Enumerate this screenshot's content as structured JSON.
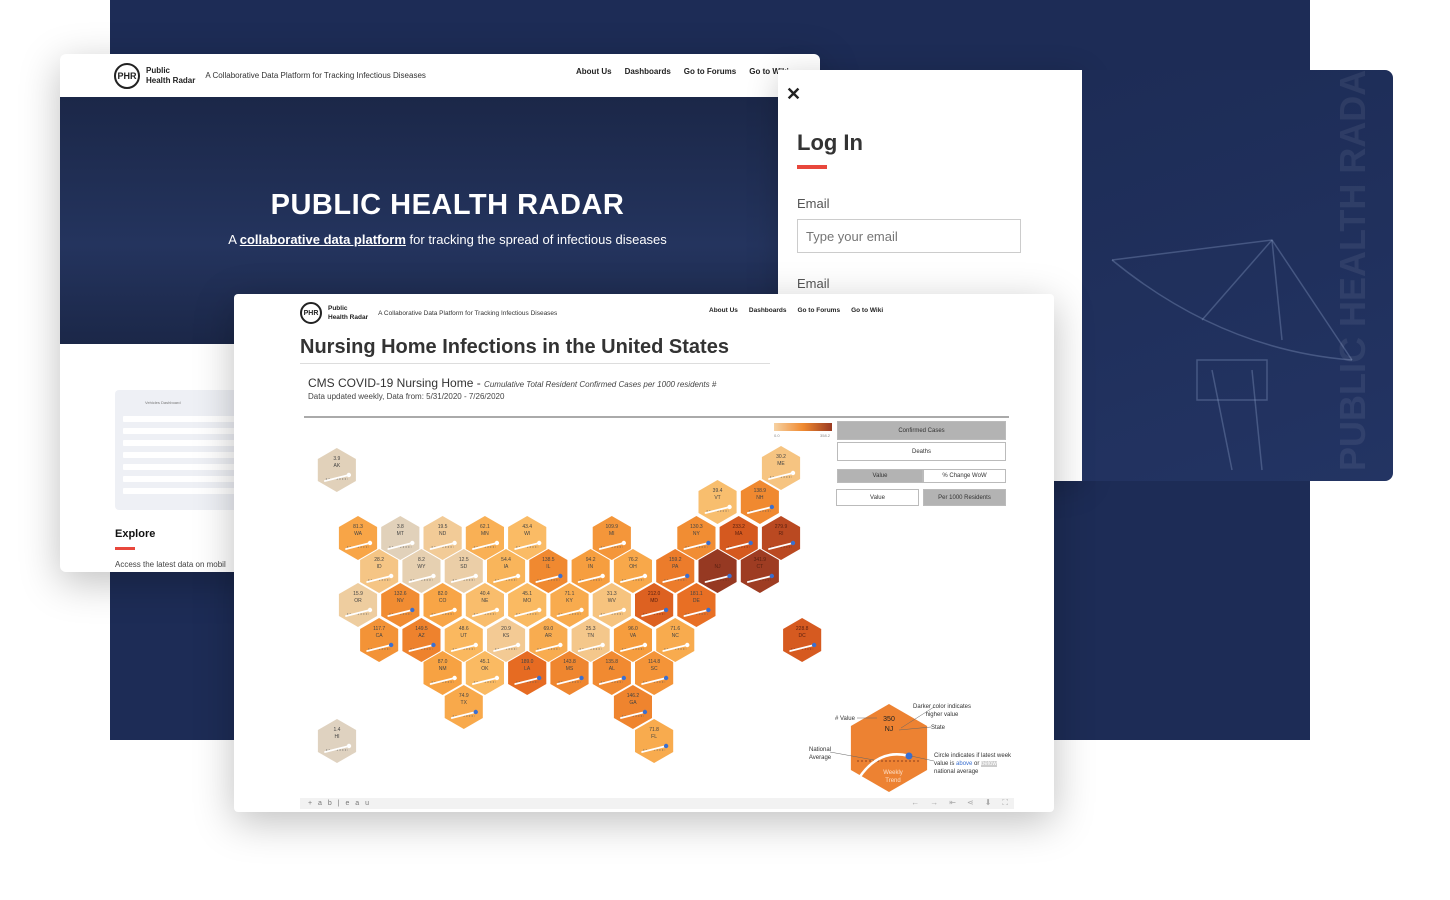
{
  "site": {
    "logo": "PHR",
    "brand_line1": "Public",
    "brand_line2": "Health Radar",
    "tagline": "A Collaborative Data Platform for Tracking Infectious Diseases",
    "nav": [
      "About Us",
      "Dashboards",
      "Go to Forums",
      "Go to Wiki"
    ],
    "hero_title": "PUBLIC HEALTH RADAR",
    "hero_sub_prefix": "A ",
    "hero_sub_link": "collaborative data platform",
    "hero_sub_suffix": " for tracking the spread of infectious diseases",
    "thumb_title": "Vehicles Dashboard",
    "explore_title": "Explore",
    "explore_text": "Access the latest data on mobil"
  },
  "login": {
    "close_icon": "close-icon",
    "title": "Log In",
    "email_label": "Email",
    "email_placeholder": "Type your email",
    "email_label_2": "Email"
  },
  "radar_panel": {
    "watermark": "PUBLIC HEALTH RADAR"
  },
  "dashboard": {
    "title": "Nursing Home Infections in the United States",
    "subtitle": "CMS COVID-19 Nursing Home - ",
    "subtitle_italic": "Cumulative Total Resident Confirmed Cases per 1000 residents #",
    "date_line": "Data updated weekly, Data from: 5/31/2020 - 7/26/2020",
    "gradient_min": "0.0",
    "gradient_max": "358.2",
    "toggles": {
      "confirmed": "Confirmed Cases",
      "deaths": "Deaths",
      "value": "Value",
      "pct_change": "% Change WoW",
      "value2": "Value",
      "per1000": "Per 1000 Residents"
    },
    "legend": {
      "value_label": "# Value",
      "example_value": "350",
      "example_state": "NJ",
      "darker": "Darker color indicates higher value",
      "state": "State",
      "national_avg": "National Average",
      "weekly": "Weekly",
      "trend": "Trend",
      "circle_pre": "Circle indicates if latest week value is ",
      "above": "above",
      "or": " or ",
      "below": "below",
      "circle_post": " national average",
      "above_color": "#3a6fd0"
    },
    "footer": {
      "brand": "+ a b | e a u",
      "icons": [
        "undo-icon",
        "redo-icon",
        "revert-icon",
        "share-icon",
        "download-icon",
        "fullscreen-icon"
      ]
    },
    "states": [
      {
        "s": "AK",
        "v": "3.9",
        "above": false
      },
      {
        "s": "ME",
        "v": "30.2",
        "above": false
      },
      {
        "s": "VT",
        "v": "39.4",
        "above": false
      },
      {
        "s": "NH",
        "v": "138.9",
        "above": true
      },
      {
        "s": "WA",
        "v": "81.3",
        "above": false
      },
      {
        "s": "MT",
        "v": "3.8",
        "above": false
      },
      {
        "s": "ND",
        "v": "19.5",
        "above": false
      },
      {
        "s": "MN",
        "v": "62.1",
        "above": false
      },
      {
        "s": "WI",
        "v": "43.4",
        "above": false
      },
      {
        "s": "MI",
        "v": "109.9",
        "above": false
      },
      {
        "s": "NY",
        "v": "130.3",
        "above": true
      },
      {
        "s": "MA",
        "v": "233.2",
        "above": true
      },
      {
        "s": "RI",
        "v": "279.9",
        "above": true
      },
      {
        "s": "ID",
        "v": "28.2",
        "above": false
      },
      {
        "s": "WY",
        "v": "8.2",
        "above": false
      },
      {
        "s": "SD",
        "v": "12.5",
        "above": false
      },
      {
        "s": "IA",
        "v": "54.4",
        "above": false
      },
      {
        "s": "IL",
        "v": "138.5",
        "above": true
      },
      {
        "s": "IN",
        "v": "94.2",
        "above": false
      },
      {
        "s": "OH",
        "v": "76.2",
        "above": false
      },
      {
        "s": "PA",
        "v": "159.2",
        "above": true
      },
      {
        "s": "NJ",
        "v": "",
        "above": true
      },
      {
        "s": "CT",
        "v": "341.9",
        "above": true
      },
      {
        "s": "OR",
        "v": "15.9",
        "above": false
      },
      {
        "s": "NV",
        "v": "132.6",
        "above": true
      },
      {
        "s": "CO",
        "v": "82.0",
        "above": false
      },
      {
        "s": "NE",
        "v": "40.4",
        "above": false
      },
      {
        "s": "MO",
        "v": "45.1",
        "above": false
      },
      {
        "s": "KY",
        "v": "71.1",
        "above": false
      },
      {
        "s": "WV",
        "v": "31.3",
        "above": false
      },
      {
        "s": "MD",
        "v": "212.0",
        "above": true
      },
      {
        "s": "DE",
        "v": "181.1",
        "above": true
      },
      {
        "s": "CA",
        "v": "117.7",
        "above": true
      },
      {
        "s": "AZ",
        "v": "149.5",
        "above": true
      },
      {
        "s": "UT",
        "v": "48.6",
        "above": false
      },
      {
        "s": "KS",
        "v": "20.9",
        "above": false
      },
      {
        "s": "AR",
        "v": "69.0",
        "above": false
      },
      {
        "s": "TN",
        "v": "25.3",
        "above": false
      },
      {
        "s": "VA",
        "v": "96.0",
        "above": false
      },
      {
        "s": "NC",
        "v": "71.6",
        "above": false
      },
      {
        "s": "DC",
        "v": "228.8",
        "above": true
      },
      {
        "s": "NM",
        "v": "87.0",
        "above": false
      },
      {
        "s": "OK",
        "v": "45.1",
        "above": false
      },
      {
        "s": "LA",
        "v": "189.0",
        "above": true
      },
      {
        "s": "MS",
        "v": "143.8",
        "above": true
      },
      {
        "s": "AL",
        "v": "135.8",
        "above": true
      },
      {
        "s": "SC",
        "v": "114.8",
        "above": true
      },
      {
        "s": "TX",
        "v": "74.9",
        "above": true
      },
      {
        "s": "GA",
        "v": "146.2",
        "above": true
      },
      {
        "s": "HI",
        "v": "1.4",
        "above": false
      },
      {
        "s": "FL",
        "v": "71.8",
        "above": true
      }
    ]
  }
}
